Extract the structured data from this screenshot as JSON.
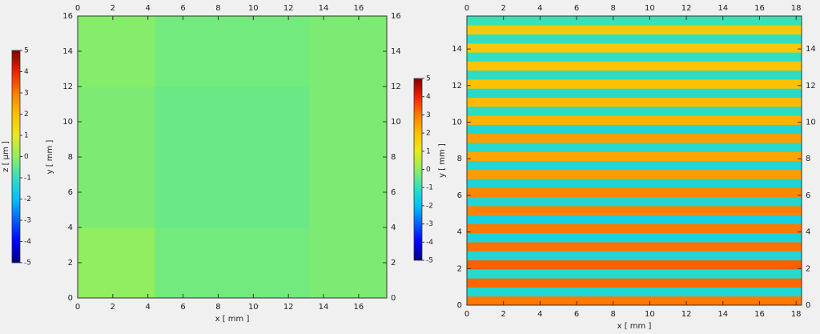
{
  "chart_data": [
    {
      "type": "heatmap",
      "xlabel": "x [ mm ]",
      "ylabel": "y [ mm ]",
      "colorbar_label": "z [ µm ]",
      "xlim": [
        0,
        17.6
      ],
      "ylim": [
        0,
        16
      ],
      "xticks": [
        0,
        2,
        4,
        6,
        8,
        10,
        12,
        14,
        16
      ],
      "yticks": [
        0,
        2,
        4,
        6,
        8,
        10,
        12,
        14,
        16
      ],
      "z": [
        [
          0,
          -0.3,
          -0.3,
          -0.2
        ],
        [
          -0.2,
          -0.4,
          -0.4,
          -0.2
        ],
        [
          -0.2,
          -0.4,
          -0.4,
          -0.2
        ],
        [
          -0.1,
          -0.3,
          -0.3,
          -0.2
        ]
      ],
      "clim": [
        -5,
        5
      ],
      "cticks": [
        -5,
        -4,
        -3,
        -2,
        -1,
        0,
        1,
        2,
        3,
        4,
        5
      ],
      "colorscale": [
        "#00007f",
        "#0000ff",
        "#0060ff",
        "#00c0ff",
        "#30e0c0",
        "#90ee60",
        "#e8e820",
        "#ffc000",
        "#ff7a00",
        "#ee2000",
        "#800000"
      ]
    },
    {
      "type": "heatmap",
      "xlabel": "x [ mm ]",
      "ylabel": "y [ mm ]",
      "xlim": [
        0,
        18.3
      ],
      "ylim": [
        0,
        15.8
      ],
      "xticks": [
        0,
        2,
        4,
        6,
        8,
        10,
        12,
        14,
        16,
        18
      ],
      "yticks": [
        0,
        2,
        4,
        6,
        8,
        10,
        12,
        14
      ],
      "z": [
        [
          3
        ],
        [
          -1.3
        ],
        [
          3.2
        ],
        [
          -1.2
        ],
        [
          3.3
        ],
        [
          -1.3
        ],
        [
          3.1
        ],
        [
          -1.4
        ],
        [
          3
        ],
        [
          -1.5
        ],
        [
          2.9
        ],
        [
          -1.3
        ],
        [
          2.8
        ],
        [
          -1.4
        ],
        [
          2.5
        ],
        [
          -1.3
        ],
        [
          2.4
        ],
        [
          -1.2
        ],
        [
          2.5
        ],
        [
          -1.3
        ],
        [
          2.2
        ],
        [
          -1.1
        ],
        [
          2.1
        ],
        [
          -1.2
        ],
        [
          2
        ],
        [
          -1.1
        ],
        [
          1.9
        ],
        [
          -1
        ],
        [
          1.8
        ],
        [
          -1
        ],
        [
          1.8
        ],
        [
          -0.9
        ]
      ],
      "clim": [
        -5,
        5
      ],
      "cticks": [
        -5,
        -4,
        -3,
        -2,
        -1,
        0,
        1,
        2,
        3,
        4,
        5
      ],
      "colorscale": [
        "#00007f",
        "#0000ff",
        "#0060ff",
        "#00c0ff",
        "#30e0c0",
        "#90ee60",
        "#e8e820",
        "#ffc000",
        "#ff7a00",
        "#ee2000",
        "#800000"
      ]
    }
  ]
}
